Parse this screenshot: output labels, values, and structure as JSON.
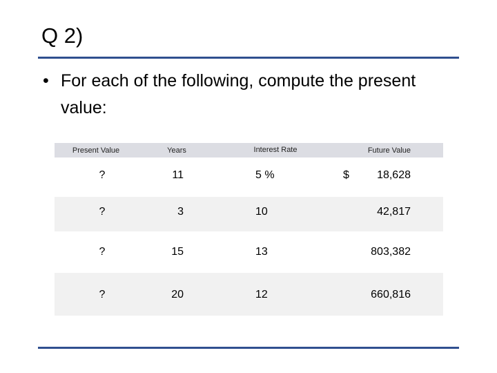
{
  "header": {
    "title": "Q 2)"
  },
  "bullet": "For each of the following, compute the present value:",
  "table": {
    "columns": [
      "Present Value",
      "Years",
      "Interest Rate",
      "Future Value"
    ],
    "rows": [
      {
        "present_value": "?",
        "years": "11",
        "interest_rate": "5 %",
        "currency": "$",
        "future_value": "18,628"
      },
      {
        "present_value": "?",
        "years": "3",
        "interest_rate": "10",
        "future_value": "42,817"
      },
      {
        "present_value": "?",
        "years": "15",
        "interest_rate": "13",
        "future_value": "803,382"
      },
      {
        "present_value": "?",
        "years": "20",
        "interest_rate": "12",
        "future_value": "660,816"
      }
    ]
  }
}
